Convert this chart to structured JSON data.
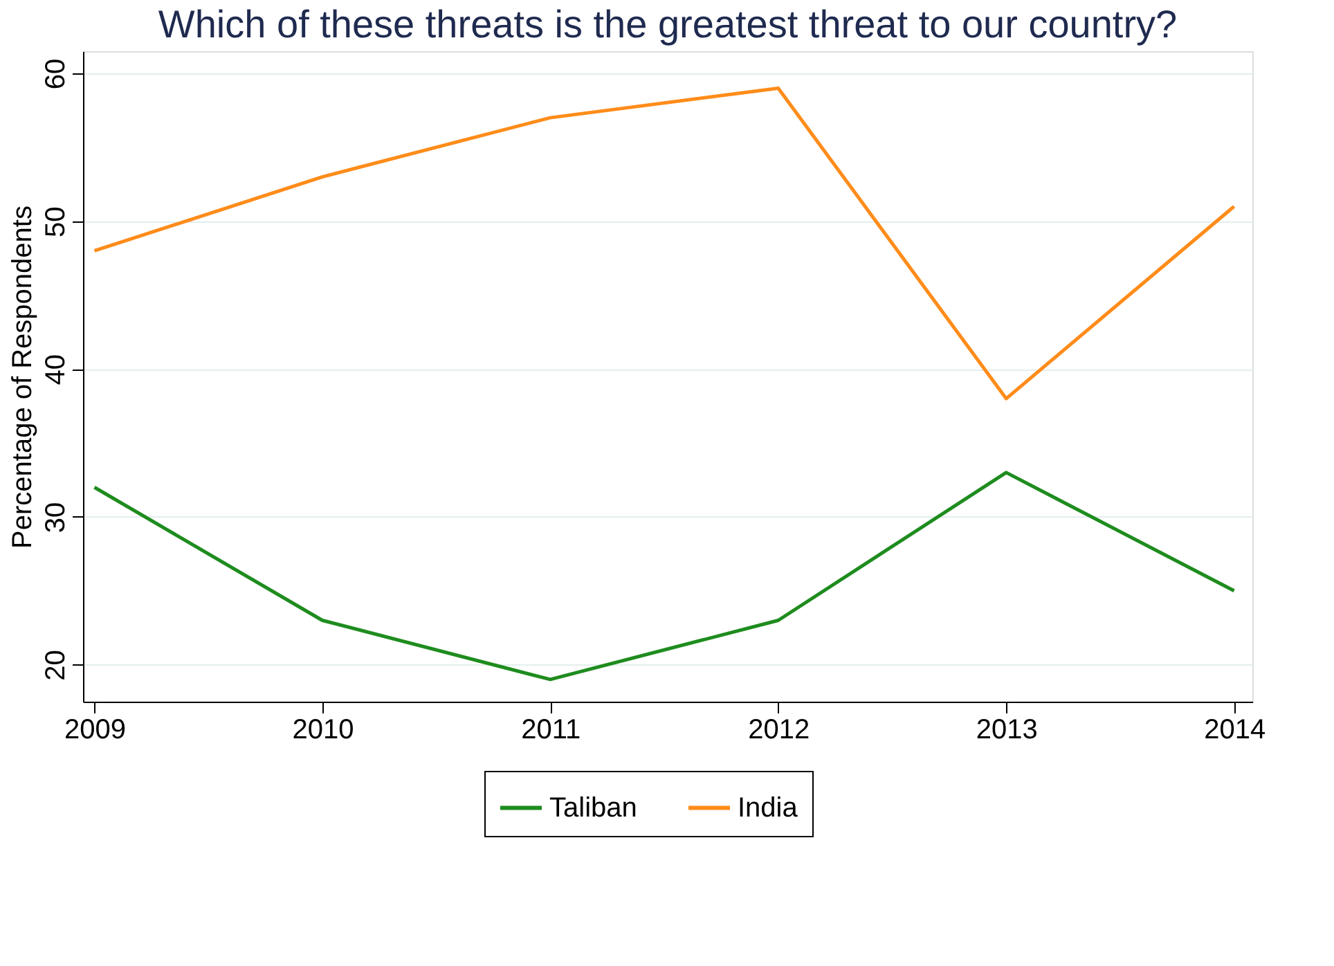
{
  "chart_data": {
    "type": "line",
    "title": "Which of these threats is the greatest threat to our country?",
    "ylabel": "Percentage of Respondents",
    "x": [
      2009,
      2010,
      2011,
      2012,
      2013,
      2014
    ],
    "series": [
      {
        "name": "Taliban",
        "color": "#1e8c1e",
        "values": [
          32,
          23,
          19,
          23,
          33,
          25
        ]
      },
      {
        "name": "India",
        "color": "#ff8c1a",
        "values": [
          48,
          53,
          57,
          59,
          38,
          51
        ]
      }
    ],
    "xlim": [
      2008.95,
      2014.08
    ],
    "xticks": [
      2009,
      2010,
      2011,
      2012,
      2013,
      2014
    ],
    "ylim": [
      17.5,
      61.5
    ],
    "yticks": [
      20,
      30,
      40,
      50,
      60
    ],
    "grid": "y",
    "legend": "bottom",
    "marker": "none",
    "line_style": "solid"
  }
}
